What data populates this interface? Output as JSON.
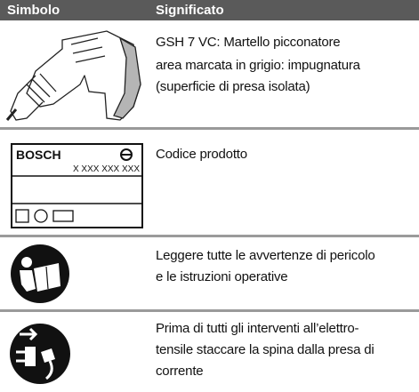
{
  "header": {
    "symbol": "Simbolo",
    "meaning": "Significato"
  },
  "rows": [
    {
      "lines": [
        "GSH 7 VC: Martello picconatore",
        "area marcata in grigio: impugnatura",
        "(superficie di presa isolata)"
      ]
    },
    {
      "lines": [
        "Codice prodotto"
      ]
    },
    {
      "lines": [
        "Leggere tutte le avvertenze di pericolo",
        "e le istruzioni operative"
      ]
    },
    {
      "lines": [
        "Prima di tutti gli interventi all’elettro-",
        "tensile staccare la spina dalla presa di",
        "corrente"
      ]
    }
  ],
  "label": {
    "brand": "BOSCH",
    "code": "X XXX XXX XXX"
  }
}
